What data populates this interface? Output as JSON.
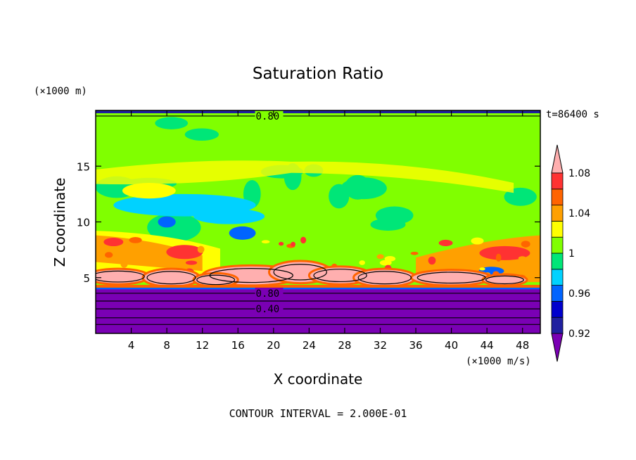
{
  "chart_data": {
    "type": "heatmap",
    "title": "Saturation Ratio",
    "xlabel": "X coordinate",
    "ylabel": "Z coordinate",
    "x_unit_label": "(×1000 m/s)",
    "y_unit_label": "(×1000 m)",
    "time_label": "t=86400 s",
    "footer": "CONTOUR INTERVAL = 2.000E-01",
    "xlim": [
      0,
      50
    ],
    "ylim": [
      0,
      20
    ],
    "x_ticks": [
      "4",
      "8",
      "12",
      "16",
      "20",
      "24",
      "28",
      "32",
      "36",
      "40",
      "44",
      "48"
    ],
    "y_ticks": [
      "5",
      "10",
      "15"
    ],
    "contour_labels": [
      "0.80",
      "0.80",
      "0.40"
    ],
    "colorbar": {
      "tick_labels": [
        "0.92",
        "0.96",
        "1",
        "1.04",
        "1.08"
      ],
      "levels": [
        0.9,
        0.92,
        0.94,
        0.96,
        0.98,
        1.0,
        1.02,
        1.04,
        1.06,
        1.08,
        1.1
      ],
      "colors": [
        "#7a00b4",
        "#2020a0",
        "#0000cd",
        "#0064ff",
        "#00d2ff",
        "#00e678",
        "#80ff00",
        "#ffff00",
        "#ffa000",
        "#ff6400",
        "#ff3232",
        "#ffafaf"
      ]
    }
  }
}
